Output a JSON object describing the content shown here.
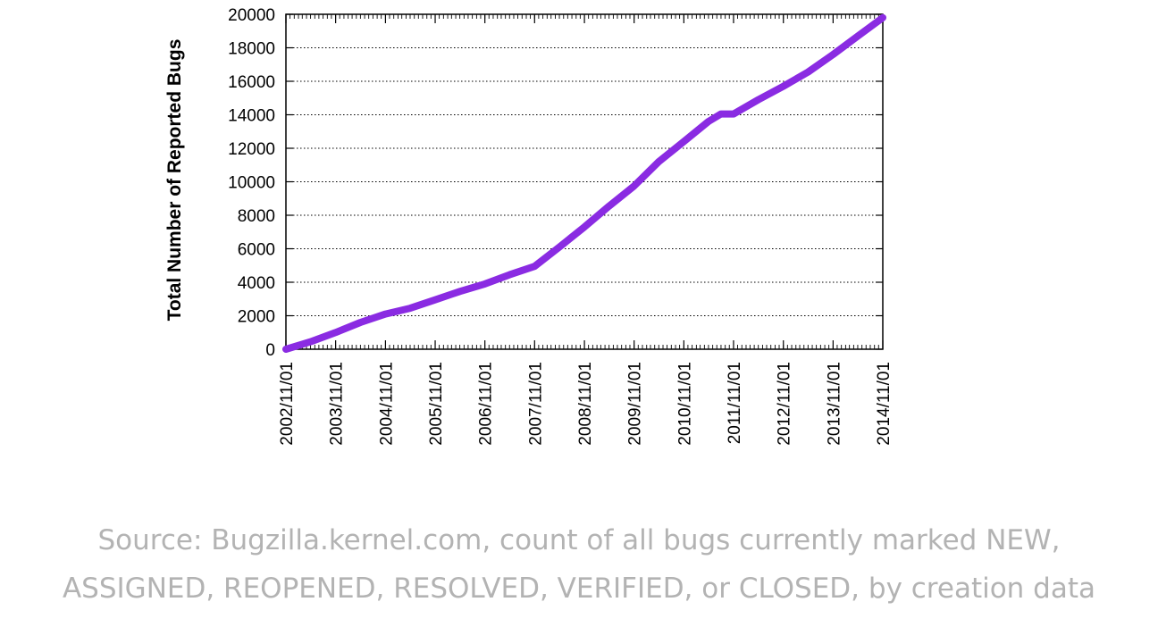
{
  "chart_data": {
    "type": "line",
    "title": "",
    "xlabel": "",
    "ylabel": "Total Number of Reported Bugs",
    "ylim": [
      0,
      20000
    ],
    "yticks": [
      0,
      2000,
      4000,
      6000,
      8000,
      10000,
      12000,
      14000,
      16000,
      18000,
      20000
    ],
    "xlim": [
      "2002/11/01",
      "2014/11/01"
    ],
    "xticks": [
      "2002/11/01",
      "2003/11/01",
      "2004/11/01",
      "2005/11/01",
      "2006/11/01",
      "2007/11/01",
      "2008/11/01",
      "2009/11/01",
      "2010/11/01",
      "2011/11/01",
      "2012/11/01",
      "2013/11/01",
      "2014/11/01"
    ],
    "grid": true,
    "line_color": "#8a2be2",
    "series": [
      {
        "x": [
          "2002/11/01",
          "2003/05/01",
          "2003/11/01",
          "2004/05/01",
          "2004/11/01",
          "2005/05/01",
          "2005/11/01",
          "2006/05/01",
          "2006/11/01",
          "2007/05/01",
          "2007/11/01",
          "2008/05/01",
          "2008/11/01",
          "2009/05/01",
          "2009/11/01",
          "2010/05/01",
          "2010/11/01",
          "2011/05/01",
          "2011/08/01",
          "2011/11/01",
          "2012/05/01",
          "2012/11/01",
          "2013/05/01",
          "2013/11/01",
          "2014/05/01",
          "2014/11/01"
        ],
        "y": [
          0,
          450,
          1000,
          1600,
          2100,
          2450,
          2950,
          3450,
          3900,
          4450,
          4950,
          6100,
          7300,
          8550,
          9750,
          11200,
          12400,
          13600,
          14050,
          14050,
          14900,
          15700,
          16550,
          17600,
          18700,
          19800
        ]
      }
    ]
  },
  "caption": {
    "line1": "Source: Bugzilla.kernel.com, count of all bugs currently marked NEW,",
    "line2": "ASSIGNED, REOPENED, RESOLVED, VERIFIED, or CLOSED, by creation data"
  }
}
